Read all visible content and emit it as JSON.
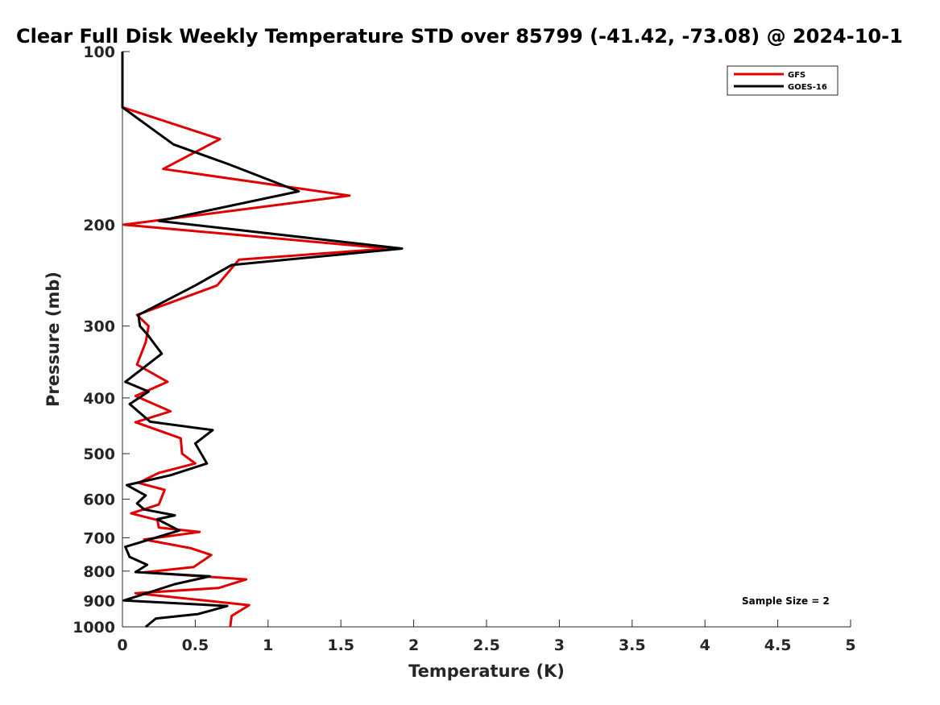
{
  "chart_data": {
    "type": "line",
    "title": "Clear Full Disk Weekly Temperature STD over 85799 (-41.42, -73.08) @ 2024-10-1",
    "xlabel": "Temperature (K)",
    "ylabel": "Pressure (mb)",
    "xlim": [
      0,
      5
    ],
    "ylim": [
      100,
      1000
    ],
    "y_scale": "log",
    "y_reversed": true,
    "x_ticks": [
      "0",
      "0.5",
      "1",
      "1.5",
      "2",
      "2.5",
      "3",
      "3.5",
      "4",
      "4.5",
      "5"
    ],
    "y_ticks": [
      "100",
      "200",
      "300",
      "400",
      "500",
      "600",
      "700",
      "800",
      "900",
      "1000"
    ],
    "grid": false,
    "legend_position": "top-right",
    "annotation": "Sample Size = 2",
    "series": [
      {
        "name": "GFS",
        "color": "#e00000",
        "x": [
          0,
          0,
          0.67,
          0.28,
          1.56,
          0.01,
          1.83,
          0.8,
          0.65,
          0.1,
          0.18,
          0.16,
          0.1,
          0.31,
          0.09,
          0.33,
          0.09,
          0.4,
          0.41,
          0.5,
          0.25,
          0.11,
          0.29,
          0.25,
          0.06,
          0.24,
          0.25,
          0.53,
          0.15,
          0.47,
          0.61,
          0.49,
          0.15,
          0.85,
          0.66,
          0.09,
          0.87,
          0.75,
          0.74
        ],
        "y": [
          100,
          125,
          142,
          160,
          178,
          200,
          220,
          230,
          255,
          287,
          300,
          320,
          350,
          375,
          397,
          422,
          441,
          470,
          500,
          520,
          540,
          562,
          578,
          613,
          635,
          652,
          672,
          684,
          705,
          730,
          750,
          787,
          804,
          827,
          856,
          874,
          917,
          957,
          1000
        ]
      },
      {
        "name": "GOES-16",
        "color": "#000000",
        "x": [
          0,
          0,
          0.35,
          0.73,
          1.21,
          0.25,
          1.92,
          0.75,
          0.5,
          0.11,
          0.12,
          0.17,
          0.27,
          0.02,
          0.18,
          0.05,
          0.19,
          0.62,
          0.5,
          0.58,
          0.33,
          0.03,
          0.16,
          0.1,
          0.15,
          0.36,
          0.24,
          0.39,
          0.13,
          0.02,
          0.05,
          0.17,
          0.09,
          0.6,
          0.36,
          0.01,
          0.72,
          0.52,
          0.23,
          0.16
        ],
        "y": [
          100,
          125,
          145,
          157,
          175,
          197,
          220,
          235,
          255,
          287,
          300,
          310,
          335,
          375,
          390,
          410,
          440,
          455,
          480,
          520,
          545,
          567,
          591,
          610,
          625,
          640,
          650,
          680,
          712,
          726,
          756,
          780,
          803,
          817,
          843,
          900,
          920,
          950,
          967,
          1000
        ]
      }
    ]
  }
}
